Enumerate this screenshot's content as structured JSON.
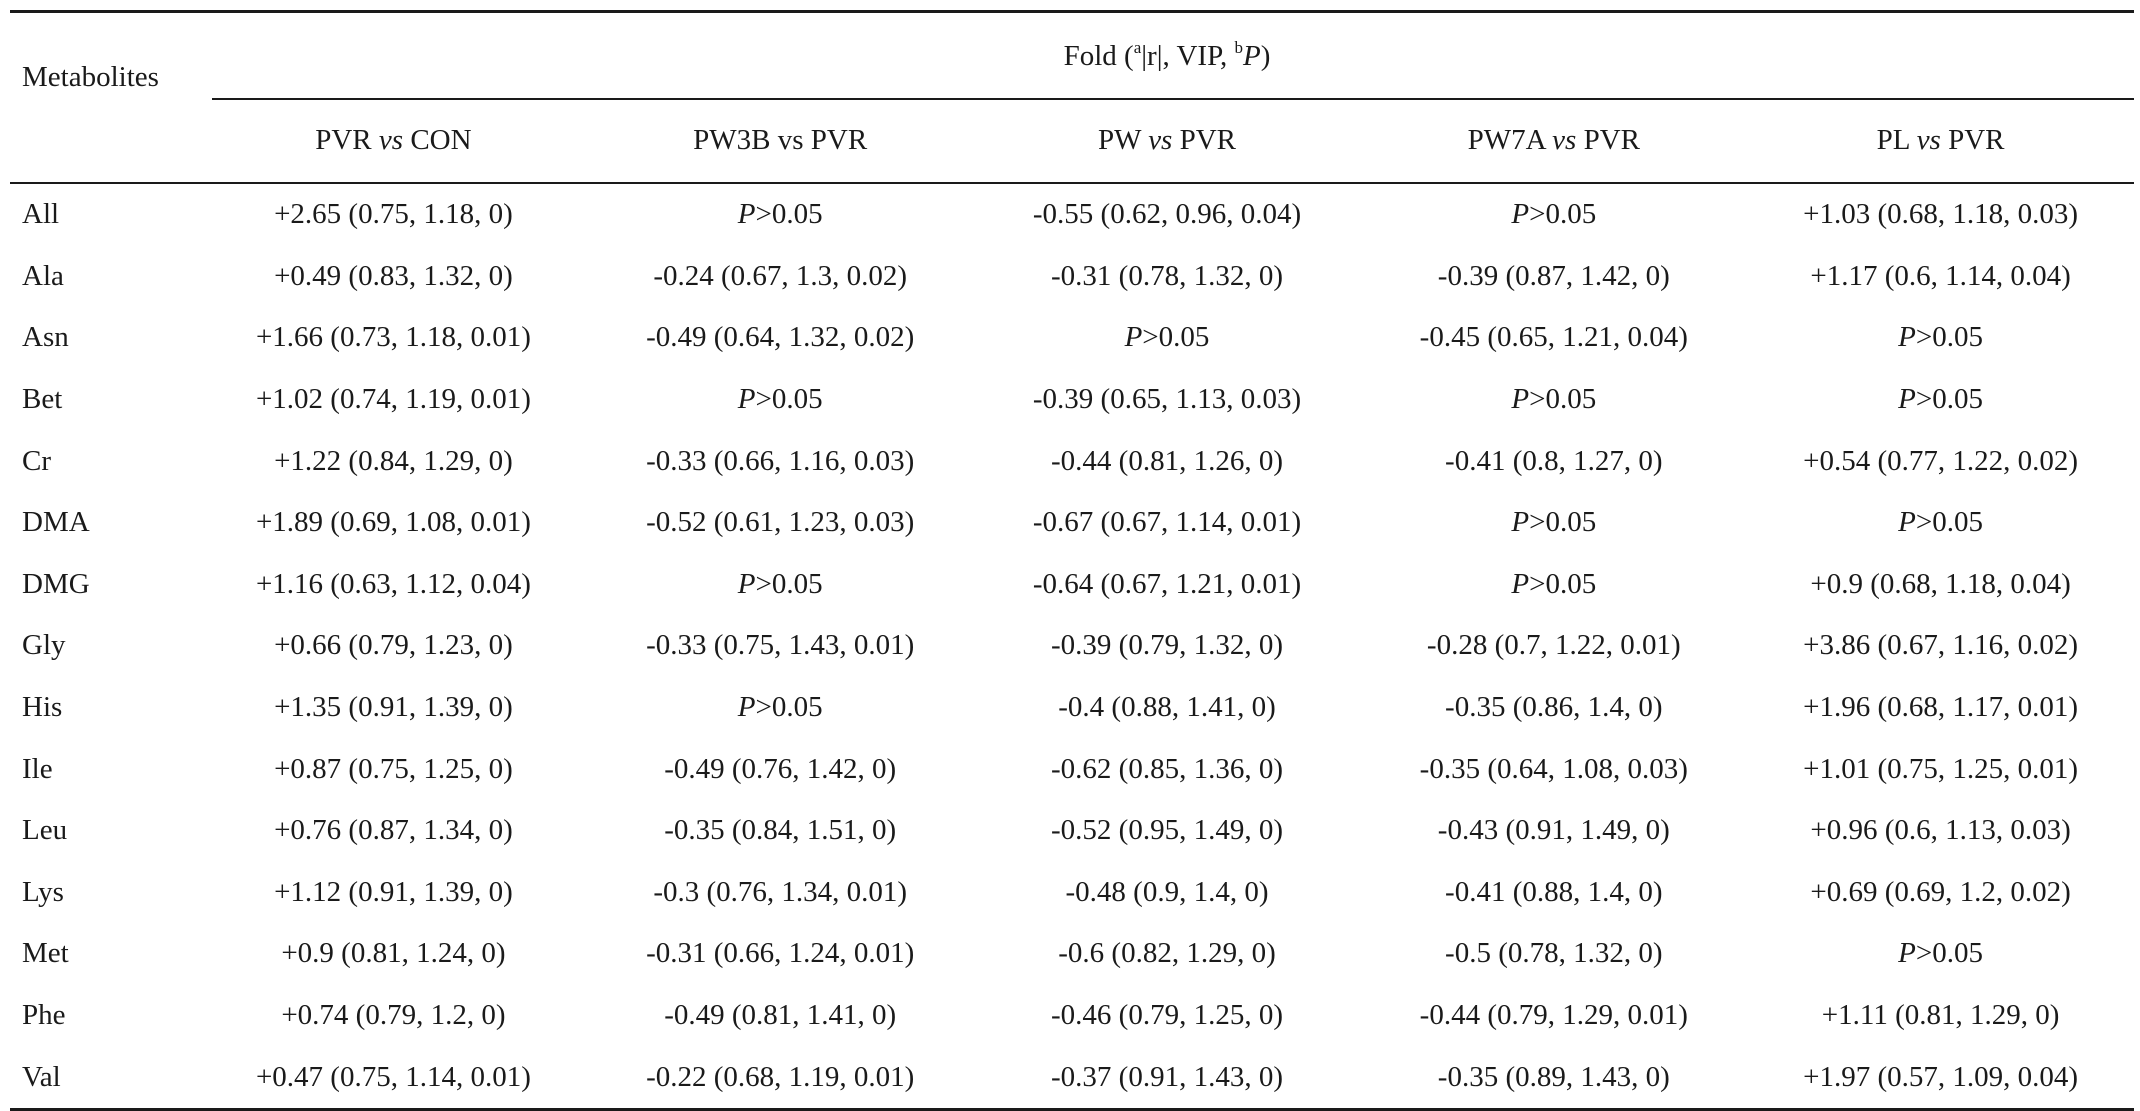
{
  "header": {
    "row_label": "Metabolites",
    "fold_title": {
      "prefix": "Fold (",
      "sup_a": "a",
      "mid": "|r|, VIP, ",
      "sup_b": "b",
      "p": "P",
      "suffix": ")"
    },
    "columns": [
      {
        "left": "PVR ",
        "italic": "vs",
        "right": " CON"
      },
      {
        "left": "PW3B vs PVR",
        "italic": "",
        "right": ""
      },
      {
        "left": "PW ",
        "italic": "vs",
        "right": " PVR"
      },
      {
        "left": "PW7A ",
        "italic": "vs",
        "right": " PVR"
      },
      {
        "left": "PL ",
        "italic": "vs",
        "right": " PVR"
      }
    ]
  },
  "not_significant": {
    "p": "P",
    "rest": ">0.05"
  },
  "rows": [
    {
      "name": "All",
      "values": [
        "+2.65 (0.75, 1.18, 0)",
        "NS",
        "-0.55 (0.62, 0.96, 0.04)",
        "NS",
        "+1.03 (0.68, 1.18, 0.03)"
      ]
    },
    {
      "name": "Ala",
      "values": [
        "+0.49 (0.83, 1.32, 0)",
        "-0.24 (0.67, 1.3, 0.02)",
        "-0.31 (0.78, 1.32, 0)",
        "-0.39 (0.87, 1.42, 0)",
        "+1.17 (0.6, 1.14, 0.04)"
      ]
    },
    {
      "name": "Asn",
      "values": [
        "+1.66 (0.73, 1.18, 0.01)",
        "-0.49 (0.64, 1.32, 0.02)",
        "NS",
        "-0.45 (0.65, 1.21, 0.04)",
        "NS"
      ]
    },
    {
      "name": "Bet",
      "values": [
        "+1.02 (0.74, 1.19, 0.01)",
        "NS",
        "-0.39 (0.65, 1.13, 0.03)",
        "NS",
        "NS"
      ]
    },
    {
      "name": "Cr",
      "values": [
        "+1.22 (0.84, 1.29, 0)",
        "-0.33 (0.66, 1.16, 0.03)",
        "-0.44 (0.81, 1.26, 0)",
        "-0.41 (0.8, 1.27, 0)",
        "+0.54 (0.77, 1.22, 0.02)"
      ]
    },
    {
      "name": "DMA",
      "values": [
        "+1.89 (0.69, 1.08, 0.01)",
        "-0.52 (0.61, 1.23, 0.03)",
        "-0.67 (0.67, 1.14, 0.01)",
        "NS",
        "NS"
      ]
    },
    {
      "name": "DMG",
      "values": [
        "+1.16 (0.63, 1.12, 0.04)",
        "NS",
        "-0.64 (0.67, 1.21, 0.01)",
        "NS",
        "+0.9 (0.68, 1.18, 0.04)"
      ]
    },
    {
      "name": "Gly",
      "values": [
        "+0.66 (0.79, 1.23, 0)",
        "-0.33 (0.75, 1.43, 0.01)",
        "-0.39 (0.79, 1.32, 0)",
        "-0.28 (0.7, 1.22, 0.01)",
        "+3.86 (0.67, 1.16, 0.02)"
      ]
    },
    {
      "name": "His",
      "values": [
        "+1.35 (0.91, 1.39, 0)",
        "NS",
        "-0.4 (0.88, 1.41, 0)",
        "-0.35 (0.86, 1.4, 0)",
        "+1.96 (0.68, 1.17, 0.01)"
      ]
    },
    {
      "name": "Ile",
      "values": [
        "+0.87 (0.75, 1.25, 0)",
        "-0.49 (0.76, 1.42, 0)",
        "-0.62 (0.85, 1.36, 0)",
        "-0.35 (0.64, 1.08, 0.03)",
        "+1.01 (0.75, 1.25, 0.01)"
      ]
    },
    {
      "name": "Leu",
      "values": [
        "+0.76 (0.87, 1.34, 0)",
        "-0.35 (0.84, 1.51, 0)",
        "-0.52 (0.95, 1.49, 0)",
        "-0.43 (0.91, 1.49, 0)",
        "+0.96 (0.6, 1.13, 0.03)"
      ]
    },
    {
      "name": "Lys",
      "values": [
        "+1.12 (0.91, 1.39, 0)",
        "-0.3 (0.76, 1.34, 0.01)",
        "-0.48 (0.9, 1.4, 0)",
        "-0.41 (0.88, 1.4, 0)",
        "+0.69 (0.69, 1.2, 0.02)"
      ]
    },
    {
      "name": "Met",
      "values": [
        "+0.9 (0.81, 1.24, 0)",
        "-0.31 (0.66, 1.24, 0.01)",
        "-0.6 (0.82, 1.29, 0)",
        "-0.5 (0.78, 1.32, 0)",
        "NS"
      ]
    },
    {
      "name": "Phe",
      "values": [
        "+0.74 (0.79, 1.2, 0)",
        "-0.49 (0.81, 1.41, 0)",
        "-0.46 (0.79, 1.25, 0)",
        "-0.44 (0.79, 1.29, 0.01)",
        "+1.11 (0.81, 1.29, 0)"
      ]
    },
    {
      "name": "Val",
      "values": [
        "+0.47 (0.75, 1.14, 0.01)",
        "-0.22 (0.68, 1.19, 0.01)",
        "-0.37 (0.91, 1.43, 0)",
        "-0.35 (0.89, 1.43, 0)",
        "+1.97 (0.57, 1.09, 0.04)"
      ]
    }
  ]
}
